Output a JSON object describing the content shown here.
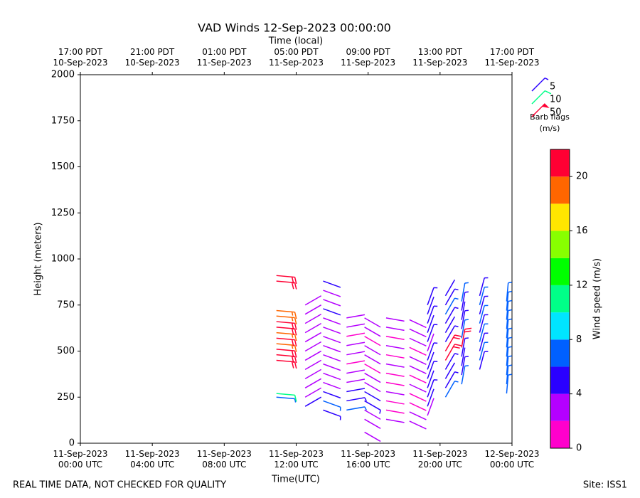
{
  "chart_data": {
    "type": "barb",
    "title": "VAD Winds 12-Sep-2023 00:00:00",
    "top_axis_label": "Time (local)",
    "x_label": "Time(UTC)",
    "y_label": "Height (meters)",
    "xlim": [
      0,
      24
    ],
    "xticks": [
      {
        "value": 0,
        "label": "11-Sep-2023\n00:00 UTC"
      },
      {
        "value": 4,
        "label": "11-Sep-2023\n04:00 UTC"
      },
      {
        "value": 8,
        "label": "11-Sep-2023\n08:00 UTC"
      },
      {
        "value": 12,
        "label": "11-Sep-2023\n12:00 UTC"
      },
      {
        "value": 16,
        "label": "11-Sep-2023\n16:00 UTC"
      },
      {
        "value": 20,
        "label": "11-Sep-2023\n20:00 UTC"
      },
      {
        "value": 24,
        "label": "12-Sep-2023\n00:00 UTC"
      }
    ],
    "top_xticks": [
      {
        "value": 0,
        "label": "17:00 PDT\n10-Sep-2023"
      },
      {
        "value": 4,
        "label": "21:00 PDT\n10-Sep-2023"
      },
      {
        "value": 8,
        "label": "01:00 PDT\n11-Sep-2023"
      },
      {
        "value": 12,
        "label": "05:00 PDT\n11-Sep-2023"
      },
      {
        "value": 16,
        "label": "09:00 PDT\n11-Sep-2023"
      },
      {
        "value": 20,
        "label": "13:00 PDT\n11-Sep-2023"
      },
      {
        "value": 24,
        "label": "17:00 PDT\n11-Sep-2023"
      }
    ],
    "ylim": [
      0,
      2000
    ],
    "yticks": [
      0,
      250,
      500,
      750,
      1000,
      1250,
      1500,
      1750,
      2000
    ],
    "profiles": [
      {
        "x": 10.9,
        "direction": 95,
        "heights": [
          250,
          270,
          450,
          480,
          510,
          540,
          570,
          600,
          630,
          660,
          690,
          720,
          880,
          910
        ],
        "speeds": [
          7,
          10,
          21,
          20,
          21,
          19,
          20,
          19,
          21,
          20,
          19,
          18,
          22,
          22
        ]
      },
      {
        "x": 12.5,
        "direction": 60,
        "heights": [
          200,
          250,
          300,
          350,
          400,
          450,
          500,
          550,
          600,
          650,
          700,
          750
        ],
        "speeds": [
          4,
          3,
          3,
          2,
          3,
          2,
          2,
          3,
          2,
          3,
          3,
          2
        ]
      },
      {
        "x": 13.5,
        "direction": 110,
        "heights": [
          180,
          230,
          280,
          330,
          380,
          430,
          480,
          530,
          580,
          630,
          680,
          730,
          780,
          830,
          880
        ],
        "speeds": [
          5,
          6,
          4,
          3,
          2,
          3,
          2,
          2,
          3,
          2,
          3,
          4,
          3,
          3,
          4
        ]
      },
      {
        "x": 14.8,
        "direction": 80,
        "heights": [
          180,
          230,
          280,
          330,
          380,
          430,
          480,
          530,
          580,
          630,
          680
        ],
        "speeds": [
          6,
          5,
          4,
          2,
          2,
          1,
          2,
          2,
          1,
          2,
          3
        ]
      },
      {
        "x": 15.8,
        "direction": 120,
        "heights": [
          60,
          130,
          180,
          230,
          280,
          330,
          380,
          430,
          480,
          530,
          580,
          630,
          680
        ],
        "speeds": [
          3,
          2,
          2,
          5,
          4,
          3,
          2,
          1,
          2,
          2,
          1,
          2,
          2
        ]
      },
      {
        "x": 17,
        "direction": 100,
        "heights": [
          130,
          180,
          230,
          280,
          330,
          380,
          430,
          480,
          530,
          580,
          630,
          680
        ],
        "speeds": [
          2,
          1,
          1,
          2,
          1,
          1,
          2,
          1,
          2,
          1,
          2,
          3
        ]
      },
      {
        "x": 18.3,
        "direction": 115,
        "heights": [
          120,
          170,
          220,
          270,
          320,
          370,
          420,
          470,
          520,
          570,
          620,
          670
        ],
        "speeds": [
          2,
          2,
          1,
          1,
          2,
          1,
          2,
          2,
          1,
          2,
          2,
          3
        ]
      },
      {
        "x": 19.3,
        "direction": 20,
        "heights": [
          150,
          200,
          250,
          300,
          350,
          400,
          450,
          500,
          550,
          600,
          650,
          700,
          750
        ],
        "speeds": [
          3,
          4,
          5,
          4,
          5,
          4,
          5,
          3,
          5,
          4,
          5,
          4,
          5
        ]
      },
      {
        "x": 20.3,
        "direction": 30,
        "heights": [
          250,
          300,
          350,
          400,
          450,
          500,
          550,
          600,
          650,
          700,
          750,
          800
        ],
        "speeds": [
          6,
          5,
          4,
          5,
          22,
          21,
          5,
          4,
          5,
          6,
          5,
          4
        ]
      },
      {
        "x": 21.2,
        "direction": 10,
        "heights": [
          320,
          370,
          420,
          470,
          520,
          570,
          620,
          670,
          720,
          770
        ],
        "speeds": [
          6,
          5,
          4,
          5,
          22,
          6,
          5,
          4,
          5,
          6
        ]
      },
      {
        "x": 22.2,
        "direction": 15,
        "heights": [
          400,
          450,
          500,
          550,
          600,
          650,
          700,
          750,
          800
        ],
        "speeds": [
          5,
          6,
          5,
          6,
          5,
          6,
          5,
          6,
          5
        ]
      },
      {
        "x": 23.7,
        "direction": 5,
        "heights": [
          270,
          320,
          370,
          420,
          470,
          520,
          570,
          620,
          670,
          720,
          770
        ],
        "speeds": [
          7,
          7,
          6,
          7,
          6,
          7,
          6,
          7,
          6,
          7,
          7
        ]
      }
    ],
    "colorbar": {
      "label": "Wind speed (m/s)",
      "bins": [
        0,
        2,
        4,
        6,
        8,
        10,
        12,
        14,
        16,
        18,
        20,
        22
      ],
      "colors": [
        "#ff00cc",
        "#b400ff",
        "#2a00ff",
        "#0060ff",
        "#00e5ff",
        "#00ff88",
        "#00ff00",
        "#88ff00",
        "#ffe600",
        "#ff6600",
        "#ff0033"
      ],
      "ticks": [
        0,
        4,
        8,
        12,
        16,
        20
      ]
    },
    "barb_legend": {
      "title": "Barb flags",
      "units": "(m/s)",
      "entries": [
        {
          "value": 5,
          "color": "#2a00ff"
        },
        {
          "value": 10,
          "color": "#00ff88"
        },
        {
          "value": 50,
          "color": "#ff0033"
        }
      ]
    },
    "footer_left": "REAL TIME DATA, NOT CHECKED FOR QUALITY",
    "footer_right": "Site: ISS1"
  }
}
